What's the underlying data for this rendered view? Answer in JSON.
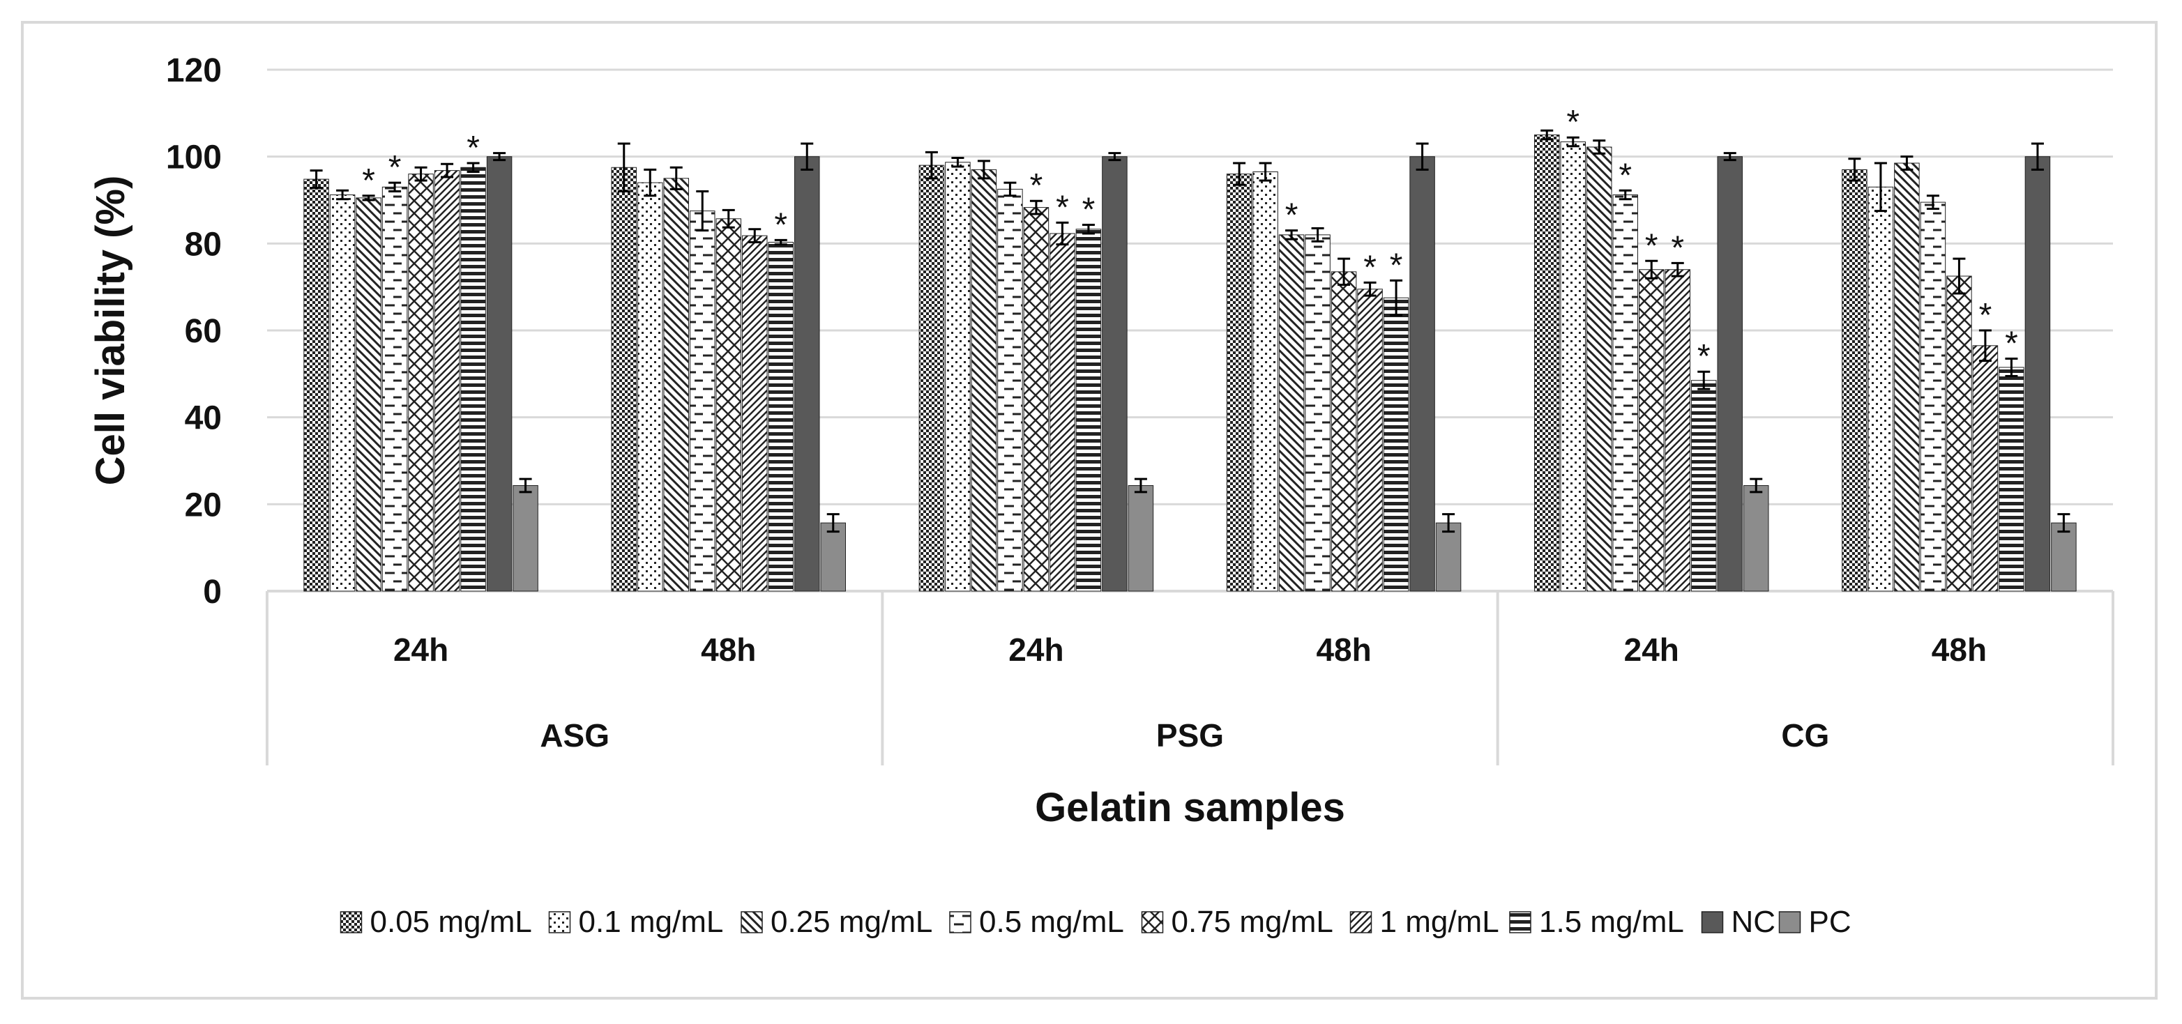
{
  "chart_data": {
    "type": "bar",
    "ylabel": "Cell viability (%)",
    "xlabel": "Gelatin samples",
    "ylim": [
      0,
      120
    ],
    "yticks": [
      0,
      20,
      40,
      60,
      80,
      100,
      120
    ],
    "grid": true,
    "legend_position": "bottom",
    "groups": [
      {
        "label": "ASG",
        "subgroups": [
          "24h",
          "48h"
        ]
      },
      {
        "label": "PSG",
        "subgroups": [
          "24h",
          "48h"
        ]
      },
      {
        "label": "CG",
        "subgroups": [
          "24h",
          "48h"
        ]
      }
    ],
    "categories": [
      "ASG 24h",
      "ASG 48h",
      "PSG 24h",
      "PSG 48h",
      "CG 24h",
      "CG 48h"
    ],
    "series": [
      {
        "name": "0.05 mg/mL",
        "pattern": "checker",
        "values": [
          94.8,
          97.5,
          98.0,
          96.0,
          105.0,
          97.0
        ],
        "errors": [
          2.0,
          5.5,
          3.0,
          2.5,
          1.0,
          2.5
        ],
        "significant": [
          false,
          false,
          false,
          false,
          false,
          false
        ]
      },
      {
        "name": "0.1 mg/mL",
        "pattern": "dots",
        "values": [
          91.2,
          94.0,
          98.7,
          96.5,
          103.4,
          93.0
        ],
        "errors": [
          1.0,
          3.0,
          1.0,
          2.0,
          1.0,
          5.5
        ],
        "significant": [
          false,
          false,
          false,
          false,
          true,
          false
        ]
      },
      {
        "name": "0.25 mg/mL",
        "pattern": "diag-back",
        "values": [
          90.5,
          95.0,
          97.0,
          82.0,
          102.2,
          98.5
        ],
        "errors": [
          0.5,
          2.5,
          2.0,
          1.0,
          1.5,
          1.5
        ],
        "significant": [
          true,
          false,
          false,
          true,
          false,
          false
        ]
      },
      {
        "name": "0.5 mg/mL",
        "pattern": "dash-h",
        "values": [
          93.0,
          87.5,
          92.5,
          82.0,
          91.2,
          89.5
        ],
        "errors": [
          1.0,
          4.5,
          1.5,
          1.5,
          1.0,
          1.5
        ],
        "significant": [
          true,
          false,
          false,
          false,
          true,
          false
        ]
      },
      {
        "name": "0.75 mg/mL",
        "pattern": "diag-cross",
        "values": [
          96.0,
          85.7,
          88.3,
          73.5,
          74.0,
          72.5
        ],
        "errors": [
          1.5,
          2.0,
          1.5,
          3.0,
          2.0,
          4.0
        ],
        "significant": [
          false,
          false,
          true,
          false,
          true,
          false
        ]
      },
      {
        "name": "1 mg/mL",
        "pattern": "diag-fwd",
        "values": [
          96.8,
          81.8,
          82.3,
          69.5,
          74.0,
          56.5
        ],
        "errors": [
          1.5,
          1.5,
          2.5,
          1.5,
          1.5,
          3.5
        ],
        "significant": [
          false,
          false,
          true,
          true,
          true,
          true
        ]
      },
      {
        "name": "1.5 mg/mL",
        "pattern": "hstripe",
        "values": [
          97.5,
          80.3,
          83.3,
          67.5,
          48.5,
          51.5
        ],
        "errors": [
          1.0,
          0.5,
          1.0,
          4.0,
          2.0,
          2.0
        ],
        "significant": [
          true,
          true,
          true,
          true,
          true,
          true
        ]
      },
      {
        "name": "NC",
        "pattern": "solid-dark",
        "values": [
          100,
          100,
          100,
          100,
          100,
          100
        ],
        "errors": [
          0.8,
          3.0,
          0.8,
          3.0,
          0.8,
          3.0
        ],
        "significant": [
          false,
          false,
          false,
          false,
          false,
          false
        ]
      },
      {
        "name": "PC",
        "pattern": "solid-gray",
        "values": [
          24.3,
          15.7,
          24.3,
          15.7,
          24.3,
          15.7
        ],
        "errors": [
          1.5,
          2.0,
          1.5,
          2.0,
          1.5,
          2.0
        ],
        "significant": [
          false,
          false,
          false,
          false,
          false,
          false
        ]
      }
    ],
    "significance_marker": "*",
    "colors": {
      "nc": "#595959",
      "pc": "#8c8c8c",
      "grid": "#d9d9d9",
      "axis": "#d9d9d9",
      "ink": "#111111"
    }
  }
}
